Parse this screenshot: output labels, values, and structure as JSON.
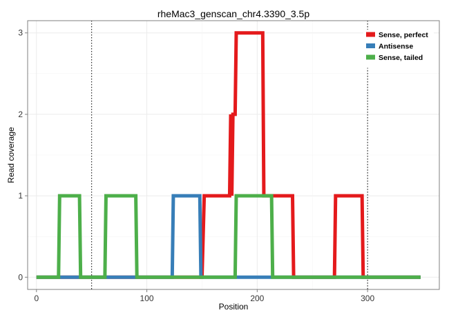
{
  "chart_data": {
    "type": "line",
    "title": "rheMac3_genscan_chr4.3390_3.5p",
    "xlabel": "Position",
    "ylabel": "Read coverage",
    "xlim": [
      -8,
      365
    ],
    "ylim": [
      -0.15,
      3.15
    ],
    "xticks": [
      0,
      100,
      200,
      300
    ],
    "yticks": [
      0,
      1,
      2,
      3
    ],
    "grid": true,
    "legend_position": "top-right",
    "vlines": [
      50,
      300
    ],
    "series": [
      {
        "name": "Sense, perfect",
        "color": "#E41A1C",
        "x": [
          0,
          150,
          152,
          175,
          176,
          177,
          178,
          180,
          181,
          205,
          206,
          232,
          233,
          270,
          271,
          295,
          296,
          348
        ],
        "y": [
          0,
          0,
          1,
          1,
          2,
          1,
          2,
          2,
          3,
          3,
          1,
          1,
          0,
          0,
          1,
          1,
          0,
          0
        ]
      },
      {
        "name": "Antisense",
        "color": "#377EB8",
        "x": [
          0,
          123,
          124,
          148,
          149,
          348
        ],
        "y": [
          0,
          0,
          1,
          1,
          0,
          0
        ]
      },
      {
        "name": "Sense, tailed",
        "color": "#4DAF4A",
        "x": [
          0,
          20,
          21,
          39,
          40,
          62,
          63,
          90,
          91,
          180,
          181,
          213,
          214,
          348
        ],
        "y": [
          0,
          0,
          1,
          1,
          0,
          0,
          1,
          1,
          0,
          0,
          1,
          1,
          0,
          0
        ]
      }
    ]
  }
}
